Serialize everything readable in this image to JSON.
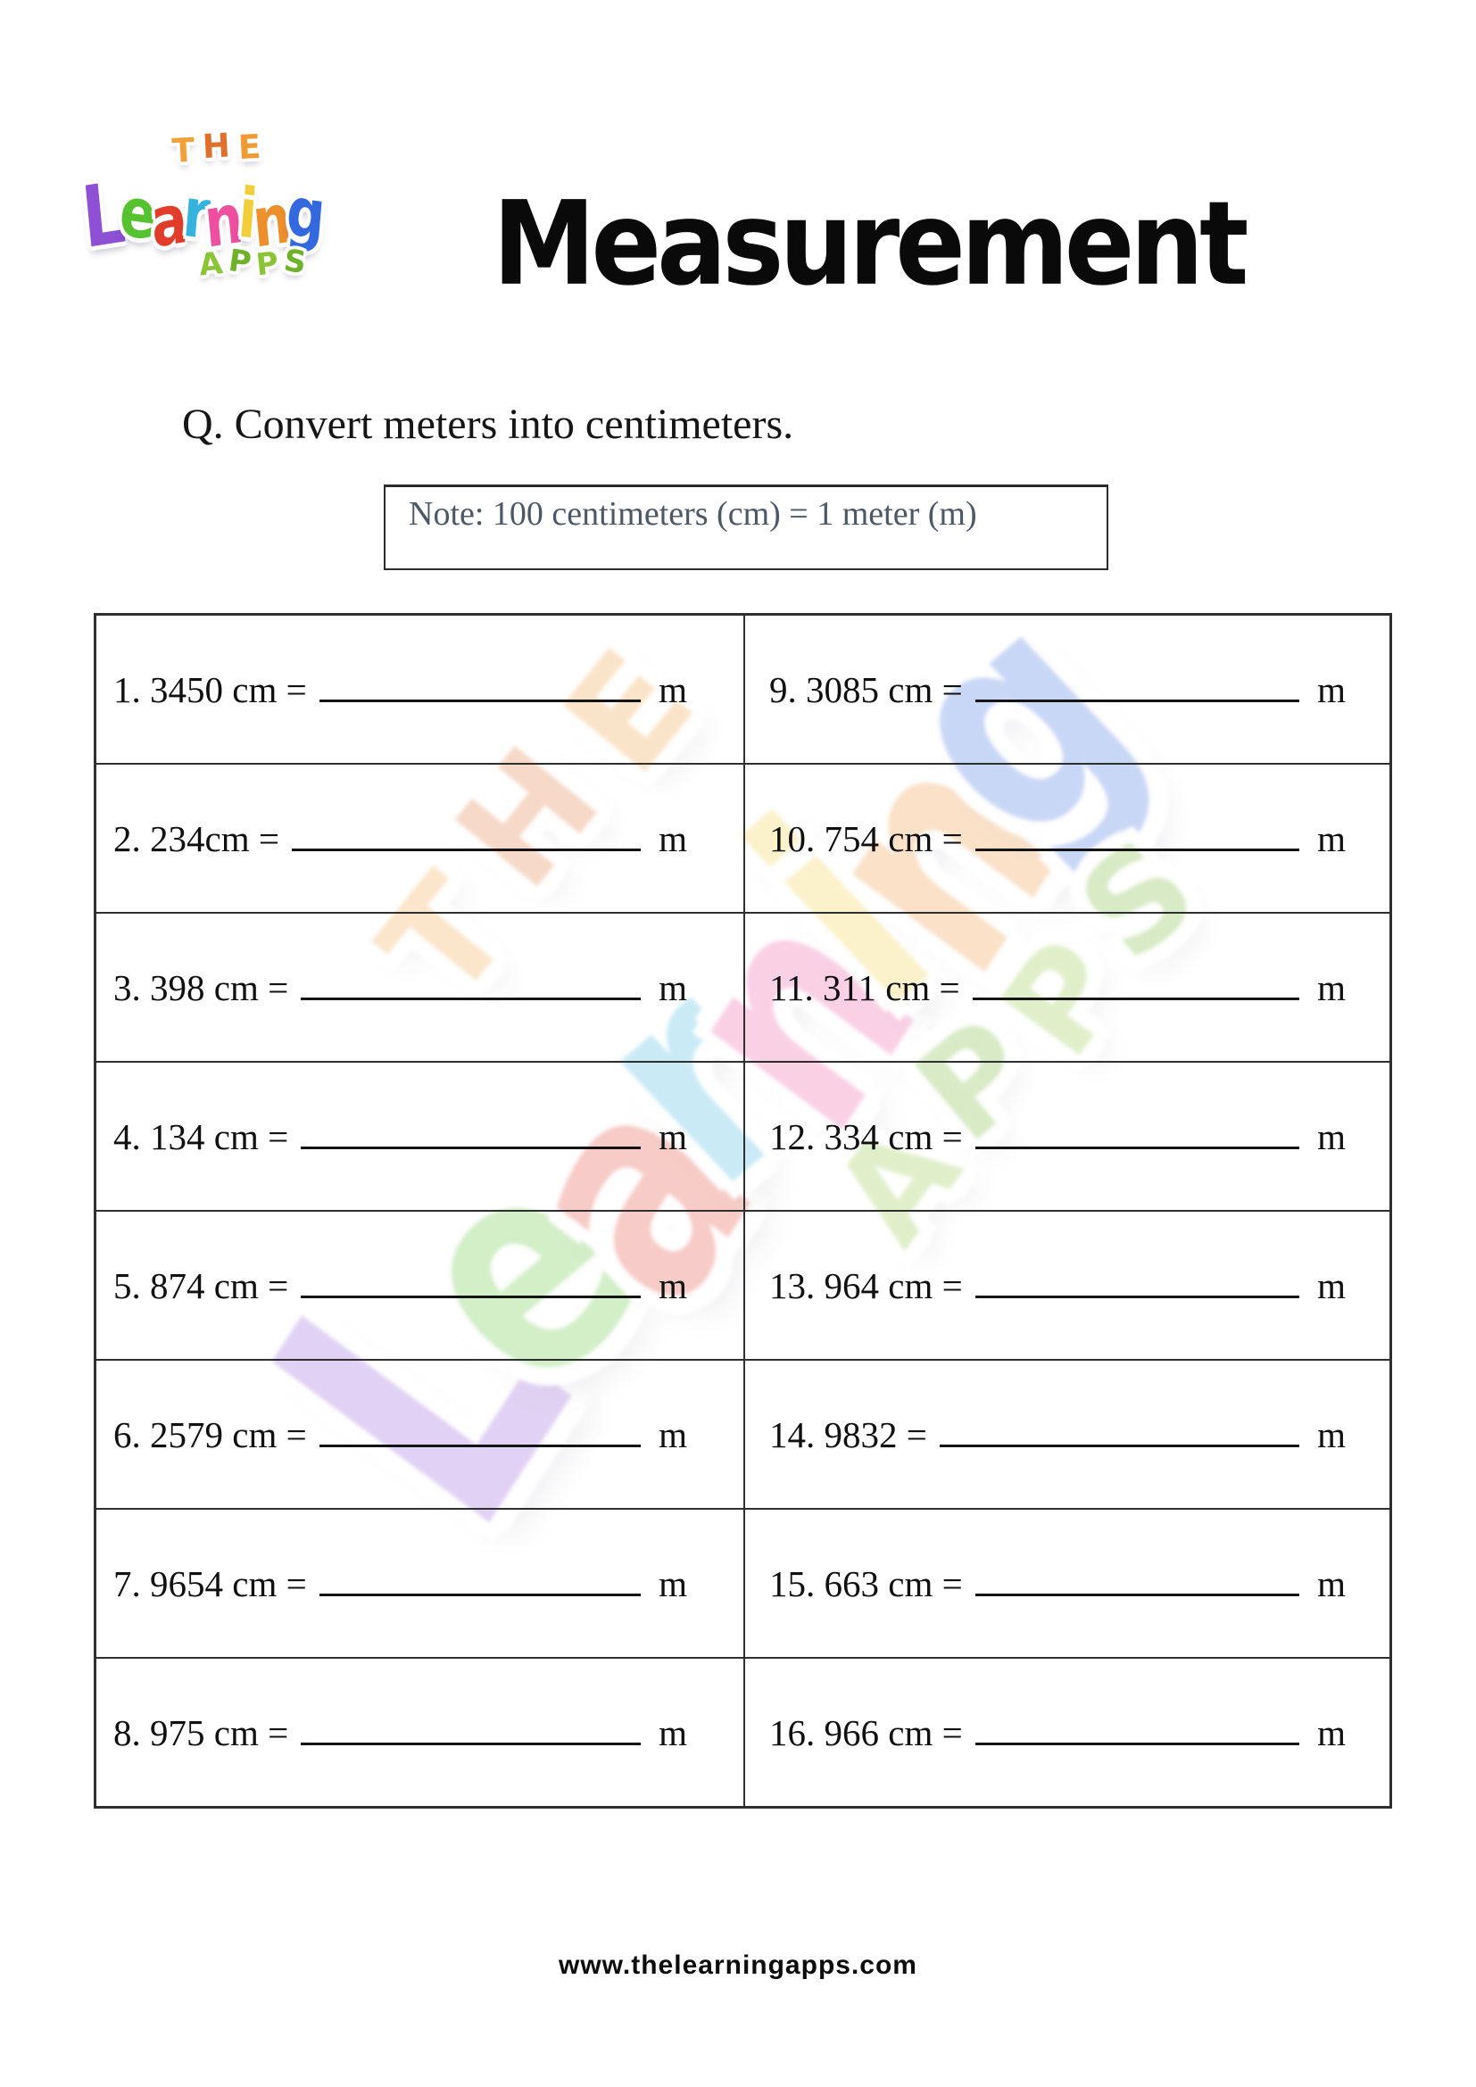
{
  "logo": {
    "the_letters": [
      {
        "ch": "T",
        "c": "#f0a13a"
      },
      {
        "ch": "H",
        "c": "#e0712d"
      },
      {
        "ch": "E",
        "c": "#ef9a33"
      }
    ],
    "learning_letters": [
      {
        "ch": "L",
        "c": "#8e51d6"
      },
      {
        "ch": "e",
        "c": "#57c22f"
      },
      {
        "ch": "a",
        "c": "#e23c2a"
      },
      {
        "ch": "r",
        "c": "#35b3de"
      },
      {
        "ch": "n",
        "c": "#ee4f9f"
      },
      {
        "ch": "i",
        "c": "#f2cf3a"
      },
      {
        "ch": "n",
        "c": "#ee8f2e"
      },
      {
        "ch": "g",
        "c": "#3468de"
      }
    ],
    "apps_letters": [
      {
        "ch": "A",
        "c": "#8cc437"
      },
      {
        "ch": "P",
        "c": "#6fb229"
      },
      {
        "ch": "P",
        "c": "#8cc437"
      },
      {
        "ch": "S",
        "c": "#6fb229"
      }
    ]
  },
  "title": "Measurement",
  "question": "Q. Convert meters into centimeters.",
  "note": "Note: 100 centimeters (cm) = 1 meter (m)",
  "problems": [
    {
      "label": "1. 3450 cm =",
      "unit": "m"
    },
    {
      "label": "2. 234cm =",
      "unit": "m"
    },
    {
      "label": "3. 398 cm =",
      "unit": "m"
    },
    {
      "label": "4. 134 cm =",
      "unit": "m"
    },
    {
      "label": "5. 874 cm =",
      "unit": "m"
    },
    {
      "label": "6. 2579 cm =",
      "unit": "m"
    },
    {
      "label": "7. 9654 cm =",
      "unit": "m"
    },
    {
      "label": "8. 975 cm =",
      "unit": "m"
    },
    {
      "label": "9. 3085 cm =",
      "unit": "m"
    },
    {
      "label": "10. 754 cm =",
      "unit": "m"
    },
    {
      "label": "11. 311 cm =",
      "unit": "m"
    },
    {
      "label": "12. 334 cm =",
      "unit": "m"
    },
    {
      "label": "13. 964 cm =",
      "unit": "m"
    },
    {
      "label": "14. 9832 =",
      "unit": "m"
    },
    {
      "label": "15. 663 cm =",
      "unit": "m"
    },
    {
      "label": "16. 966 cm =",
      "unit": "m"
    }
  ],
  "footer": "www.thelearningapps.com"
}
